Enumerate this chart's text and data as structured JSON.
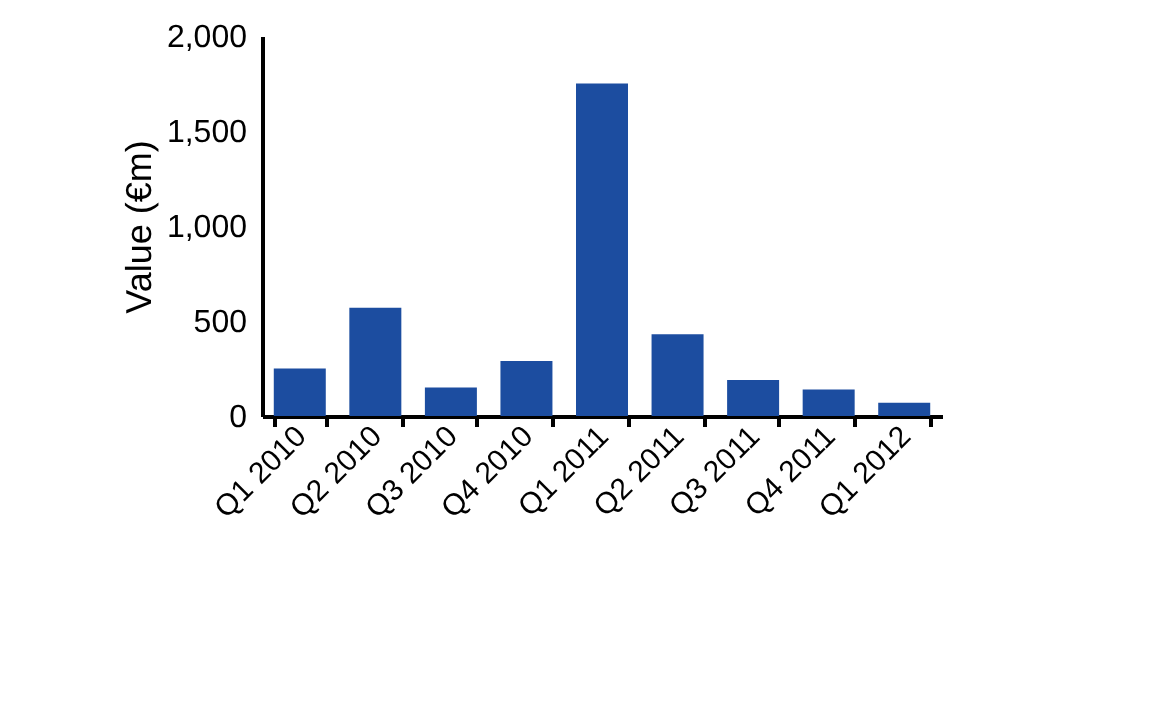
{
  "chart_data": {
    "type": "bar",
    "ylabel": "Value (€m)",
    "categories": [
      "Q1 2010",
      "Q2 2010",
      "Q3 2010",
      "Q4 2010",
      "Q1 2011",
      "Q2 2011",
      "Q3 2011",
      "Q4 2011",
      "Q1 2012"
    ],
    "values": [
      250,
      570,
      150,
      290,
      1750,
      430,
      190,
      140,
      70
    ],
    "color": "#1c4da0",
    "ylim": [
      0,
      2000
    ],
    "yticks": [
      0,
      500,
      {
        "value": 1000,
        "label": "1,000"
      },
      {
        "value": 1500,
        "label": "1,500"
      },
      {
        "value": 2000,
        "label": "2,000"
      }
    ],
    "grid": false
  }
}
